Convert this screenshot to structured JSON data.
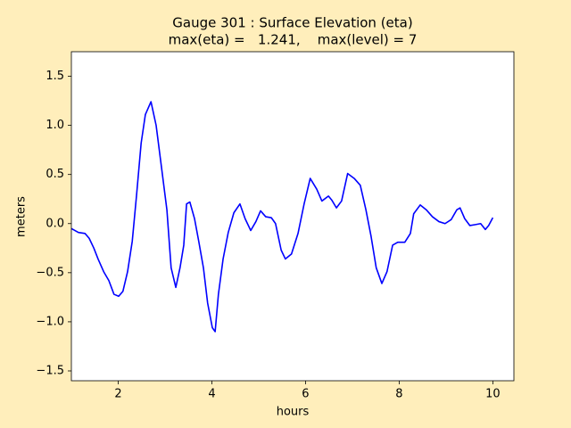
{
  "chart_data": {
    "type": "line",
    "title": "Gauge 301 : Surface Elevation (eta)",
    "subtitle": "max(eta) =   1.241,    max(level) = 7",
    "x_label": "hours",
    "y_label": "meters",
    "x": [
      1.0,
      1.15,
      1.29,
      1.38,
      1.48,
      1.57,
      1.69,
      1.8,
      1.91,
      2.01,
      2.1,
      2.2,
      2.3,
      2.39,
      2.49,
      2.58,
      2.7,
      2.81,
      2.92,
      3.04,
      3.13,
      3.23,
      3.32,
      3.4,
      3.46,
      3.53,
      3.63,
      3.72,
      3.82,
      3.91,
      4.01,
      4.07,
      4.14,
      4.24,
      4.35,
      4.47,
      4.6,
      4.71,
      4.83,
      4.94,
      5.04,
      5.15,
      5.27,
      5.36,
      5.48,
      5.57,
      5.7,
      5.84,
      5.97,
      6.1,
      6.24,
      6.35,
      6.49,
      6.56,
      6.66,
      6.77,
      6.9,
      7.04,
      7.17,
      7.29,
      7.4,
      7.51,
      7.63,
      7.74,
      7.86,
      7.97,
      8.12,
      8.24,
      8.31,
      8.45,
      8.58,
      8.71,
      8.85,
      8.98,
      9.11,
      9.23,
      9.3,
      9.4,
      9.51,
      9.63,
      9.74,
      9.84,
      9.91,
      10.0
    ],
    "series": [
      {
        "color": "#0000ff",
        "values": [
          -0.05,
          -0.09,
          -0.1,
          -0.15,
          -0.25,
          -0.36,
          -0.49,
          -0.58,
          -0.72,
          -0.74,
          -0.69,
          -0.49,
          -0.18,
          0.28,
          0.82,
          1.11,
          1.241,
          1.0,
          0.59,
          0.14,
          -0.45,
          -0.65,
          -0.45,
          -0.22,
          0.2,
          0.22,
          0.05,
          -0.18,
          -0.45,
          -0.81,
          -1.06,
          -1.1,
          -0.72,
          -0.36,
          -0.09,
          0.11,
          0.2,
          0.05,
          -0.07,
          0.02,
          0.13,
          0.07,
          0.06,
          0.0,
          -0.27,
          -0.36,
          -0.31,
          -0.1,
          0.2,
          0.46,
          0.35,
          0.23,
          0.28,
          0.24,
          0.16,
          0.23,
          0.51,
          0.46,
          0.39,
          0.14,
          -0.13,
          -0.45,
          -0.61,
          -0.49,
          -0.22,
          -0.19,
          -0.19,
          -0.1,
          0.1,
          0.19,
          0.14,
          0.07,
          0.02,
          0.0,
          0.04,
          0.14,
          0.16,
          0.05,
          -0.02,
          -0.01,
          0.0,
          -0.06,
          -0.02,
          0.06
        ]
      }
    ],
    "xlim": [
      1.0,
      10.45
    ],
    "xticks": [
      2,
      4,
      6,
      8,
      10
    ],
    "ylim": [
      -1.6,
      1.75
    ],
    "yticks": [
      {
        "value": -1.5,
        "label": "−1.5"
      },
      {
        "value": -1.0,
        "label": "−1.0"
      },
      {
        "value": -0.5,
        "label": "−0.5"
      },
      {
        "value": 0,
        "label": "0.0"
      },
      0.5,
      {
        "value": 1.0,
        "label": "1.0"
      },
      1.5
    ],
    "grid": false
  }
}
